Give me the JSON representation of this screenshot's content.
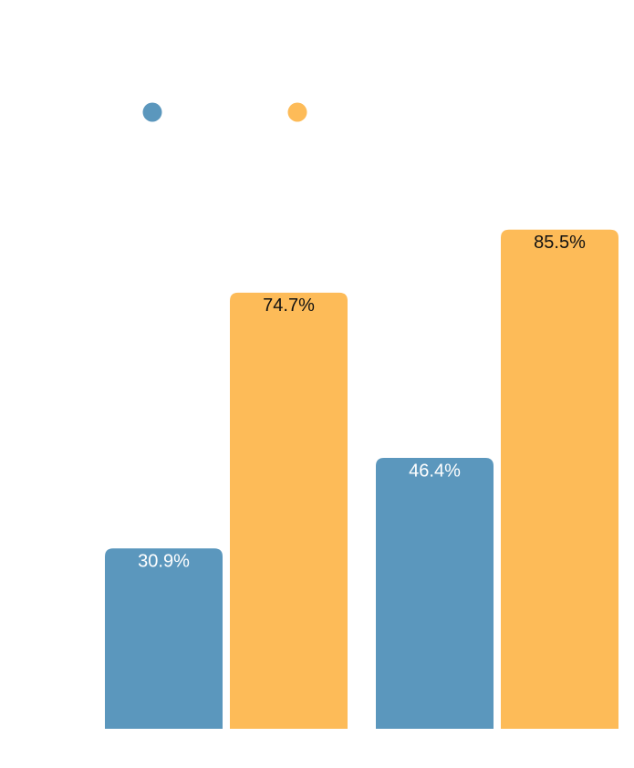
{
  "chart_data": {
    "type": "bar",
    "title": "",
    "xlabel": "",
    "ylabel": "",
    "categories": [
      "",
      ""
    ],
    "series": [
      {
        "color": "#5b97bd",
        "label_color": "#ffffff",
        "values": [
          30.9,
          46.4
        ],
        "labels": [
          "30.9%",
          "46.4%"
        ]
      },
      {
        "color": "#fdbb58",
        "label_color": "#111111",
        "values": [
          74.7,
          85.5
        ],
        "labels": [
          "74.7%",
          "85.5%"
        ]
      }
    ],
    "ylim": [
      0,
      100
    ],
    "grid": false,
    "legend_position": "top-left"
  }
}
